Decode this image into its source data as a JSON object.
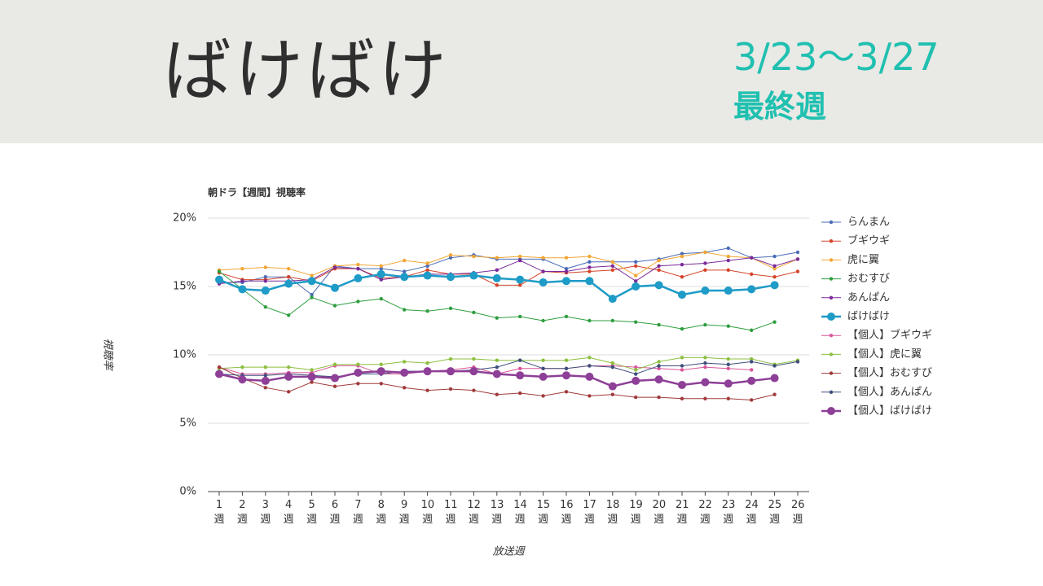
{
  "header": {
    "title": "ばけばけ",
    "date": "3/23～3/27",
    "note": "最終週"
  },
  "chart_data": {
    "type": "line",
    "title": "朝ドラ【週間】視聴率",
    "y_label": "視聴率",
    "x_label": "放送週",
    "categories": [
      "1週",
      "2週",
      "3週",
      "4週",
      "5週",
      "6週",
      "7週",
      "8週",
      "9週",
      "10週",
      "11週",
      "12週",
      "13週",
      "14週",
      "15週",
      "16週",
      "17週",
      "18週",
      "19週",
      "20週",
      "21週",
      "22週",
      "23週",
      "24週",
      "25週",
      "26週"
    ],
    "ylim": [
      0,
      20
    ],
    "yticks": [
      {
        "value": 0,
        "label": "0%"
      },
      {
        "value": 5,
        "label": "5%"
      },
      {
        "value": 10,
        "label": "10%"
      },
      {
        "value": 15,
        "label": "15%"
      },
      {
        "value": 20,
        "label": "20%"
      }
    ],
    "grid": true,
    "legend": "right",
    "series": [
      {
        "name": "らんまん",
        "color": "#4a6cb8",
        "values": [
          15.3,
          15.3,
          15.7,
          15.7,
          14.4,
          16.5,
          16.3,
          16.3,
          16.1,
          16.5,
          17.1,
          17.3,
          17.0,
          17.0,
          17.0,
          16.3,
          16.8,
          16.8,
          16.8,
          17.0,
          17.4,
          17.5,
          17.8,
          17.1,
          17.2,
          17.5
        ]
      },
      {
        "name": "ブギウギ",
        "color": "#d5452b",
        "values": [
          16.0,
          15.5,
          15.5,
          15.7,
          15.4,
          16.3,
          16.3,
          15.6,
          15.7,
          16.2,
          15.9,
          15.9,
          15.1,
          15.1,
          16.1,
          16.0,
          16.1,
          16.2,
          16.5,
          16.2,
          15.7,
          16.2,
          16.2,
          15.9,
          15.7,
          16.1
        ]
      },
      {
        "name": "虎に翼",
        "color": "#f2a634",
        "values": [
          16.2,
          16.3,
          16.4,
          16.3,
          15.8,
          16.5,
          16.6,
          16.5,
          16.9,
          16.7,
          17.3,
          17.2,
          17.1,
          17.2,
          17.1,
          17.1,
          17.2,
          16.8,
          15.8,
          16.9,
          17.2,
          17.5,
          17.2,
          17.1,
          16.3,
          17.0
        ]
      },
      {
        "name": "おむすび",
        "color": "#2e9e3e",
        "values": [
          16.1,
          14.8,
          13.5,
          12.9,
          14.2,
          13.6,
          13.9,
          14.1,
          13.3,
          13.2,
          13.4,
          13.1,
          12.7,
          12.8,
          12.5,
          12.8,
          12.5,
          12.5,
          12.4,
          12.2,
          11.9,
          12.2,
          12.1,
          11.8,
          12.4,
          null
        ]
      },
      {
        "name": "あんぱん",
        "color": "#7b2a99",
        "values": [
          15.2,
          15.4,
          15.4,
          15.4,
          15.5,
          16.4,
          16.3,
          15.5,
          15.7,
          15.9,
          15.9,
          16.0,
          16.2,
          16.9,
          16.1,
          16.1,
          16.4,
          16.5,
          15.4,
          16.5,
          16.6,
          16.7,
          16.9,
          17.1,
          16.5,
          17.0
        ]
      },
      {
        "name": "ばけばけ",
        "color": "#1e9bc7",
        "highlight": true,
        "values": [
          15.5,
          14.8,
          14.7,
          15.2,
          15.4,
          14.9,
          15.6,
          15.9,
          15.7,
          15.8,
          15.7,
          15.8,
          15.6,
          15.5,
          15.3,
          15.4,
          15.4,
          14.1,
          15.0,
          15.1,
          14.4,
          14.7,
          14.7,
          14.8,
          15.1,
          null
        ]
      },
      {
        "name": "【個人】ブギウギ",
        "color": "#d9569b",
        "values": [
          9.1,
          8.6,
          8.6,
          8.7,
          8.7,
          9.2,
          9.2,
          8.6,
          8.6,
          8.8,
          8.9,
          9.1,
          8.6,
          9.0,
          9.0,
          9.0,
          9.2,
          9.2,
          9.1,
          9.0,
          8.9,
          9.1,
          9.0,
          8.9,
          null,
          null
        ]
      },
      {
        "name": "【個人】虎に翼",
        "color": "#8cbf3f",
        "values": [
          9.0,
          9.1,
          9.1,
          9.1,
          8.9,
          9.3,
          9.3,
          9.3,
          9.5,
          9.4,
          9.7,
          9.7,
          9.6,
          9.6,
          9.6,
          9.6,
          9.8,
          9.4,
          8.9,
          9.5,
          9.8,
          9.8,
          9.7,
          9.7,
          9.3,
          9.6
        ]
      },
      {
        "name": "【個人】おむすび",
        "color": "#a03a3a",
        "values": [
          9.1,
          8.3,
          7.6,
          7.3,
          8.0,
          7.7,
          7.9,
          7.9,
          7.6,
          7.4,
          7.5,
          7.4,
          7.1,
          7.2,
          7.0,
          7.3,
          7.0,
          7.1,
          6.9,
          6.9,
          6.8,
          6.8,
          6.8,
          6.7,
          7.1,
          null
        ]
      },
      {
        "name": "【個人】あんぱん",
        "color": "#3d4f7a",
        "values": [
          8.6,
          8.5,
          8.5,
          8.6,
          8.5,
          8.4,
          8.6,
          8.6,
          8.8,
          8.8,
          8.8,
          8.9,
          9.1,
          9.6,
          9.0,
          9.0,
          9.2,
          9.1,
          8.6,
          9.2,
          9.2,
          9.4,
          9.3,
          9.5,
          9.2,
          9.5
        ]
      },
      {
        "name": "【個人】ばけばけ",
        "color": "#8e3f97",
        "highlight": true,
        "values": [
          8.6,
          8.2,
          8.1,
          8.4,
          8.4,
          8.3,
          8.7,
          8.8,
          8.7,
          8.8,
          8.8,
          8.8,
          8.6,
          8.5,
          8.4,
          8.5,
          8.4,
          7.7,
          8.1,
          8.2,
          7.8,
          8.0,
          7.9,
          8.1,
          8.3,
          null
        ]
      }
    ]
  }
}
